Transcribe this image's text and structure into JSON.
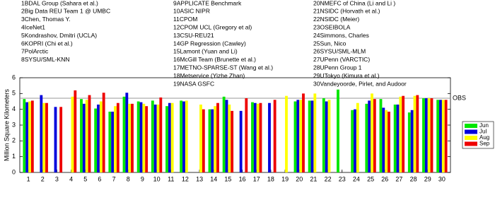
{
  "chart_data": {
    "type": "bar",
    "entry_columns": [
      [
        "1BDAL Group (Sahara et al.)",
        "2Big Data REU Team 1 @ UMBC",
        "3Chen, Thomas Y.",
        "4IceNet1",
        "5Kondrashov, Dmitri (UCLA)",
        "6KOPRI (Chi et al.)",
        "7PolArctic",
        "8SYSU/SML-KNN"
      ],
      [
        "9APPLICATE Benchmark",
        "10ASIC NIPR",
        "11CPOM",
        "12CPOM UCL (Gregory et al)",
        "13CSU-REU21",
        "14GP Regression (Cawley)",
        "15Lamont (Yuan and Li)",
        "16McGill Team (Brunette et al.)",
        "17METNO-SPARSE-ST (Wang et al.)",
        "18Metservice (Yizhe Zhan)",
        "19NASA GSFC"
      ],
      [
        "20NMEFC of China (Li and Li )",
        "21NSIDC (Horvath et al.)",
        "22NSIDC (Meier)",
        "23OSEIBOLA",
        "24Simmons, Charles",
        "25Sun, Nico",
        "26SYSU/SML-MLM",
        "27UPenn (VARCTIC)",
        "28UPenn Group 1",
        "29UTokyo (Kimura et al.)",
        "30Vandeyoorde, Pirlet, and Audoor"
      ]
    ],
    "y_label": "Million Square Kilometers",
    "categories": [
      "1",
      "2",
      "3",
      "4",
      "5",
      "6",
      "7",
      "8",
      "9",
      "10",
      "11",
      "12",
      "13",
      "14",
      "15",
      "16",
      "17",
      "18",
      "19",
      "20",
      "21",
      "22",
      "23",
      "24",
      "25",
      "26",
      "27",
      "28",
      "29",
      "30"
    ],
    "series": [
      {
        "name": "Jun",
        "color": "#00e600",
        "values": [
          4.65,
          null,
          null,
          null,
          4.65,
          4.05,
          3.85,
          4.8,
          4.5,
          4.55,
          4.2,
          4.55,
          null,
          4.0,
          4.8,
          null,
          4.45,
          null,
          null,
          4.5,
          4.55,
          4.7,
          5.25,
          3.95,
          4.35,
          4.65,
          4.3,
          3.8,
          4.7,
          4.6
        ]
      },
      {
        "name": "Jul",
        "color": "#0000dd",
        "values": [
          4.45,
          4.9,
          4.15,
          null,
          4.35,
          4.3,
          3.85,
          5.05,
          4.45,
          4.3,
          4.4,
          4.5,
          null,
          4.0,
          4.6,
          3.9,
          4.4,
          4.4,
          null,
          4.6,
          4.55,
          4.5,
          null,
          4.0,
          4.55,
          4.1,
          4.3,
          3.95,
          4.7,
          4.6
        ]
      },
      {
        "name": "Aug",
        "color": "#ffff00",
        "values": [
          4.5,
          4.4,
          null,
          4.8,
          4.6,
          4.5,
          4.2,
          4.35,
          4.35,
          4.3,
          4.4,
          4.55,
          4.3,
          4.2,
          4.3,
          null,
          4.35,
          null,
          4.85,
          4.6,
          5.0,
          4.6,
          null,
          4.4,
          5.0,
          3.95,
          4.8,
          4.85,
          4.7,
          4.6
        ]
      },
      {
        "name": "Sep",
        "color": "#ee0000",
        "values": [
          4.55,
          4.4,
          4.15,
          5.2,
          4.9,
          5.05,
          4.4,
          4.35,
          4.2,
          4.75,
          null,
          null,
          4.0,
          4.4,
          3.9,
          4.7,
          4.4,
          4.6,
          null,
          5.0,
          null,
          null,
          null,
          null,
          4.65,
          3.85,
          4.85,
          4.9,
          4.7,
          4.6
        ]
      }
    ],
    "reference_line": {
      "label": "OBS",
      "value": 4.7,
      "color": "#999999"
    },
    "ylim": [
      0,
      6
    ],
    "yticks": [
      0,
      1,
      2,
      3,
      4,
      5,
      6
    ],
    "grid": false,
    "legend": "right"
  }
}
